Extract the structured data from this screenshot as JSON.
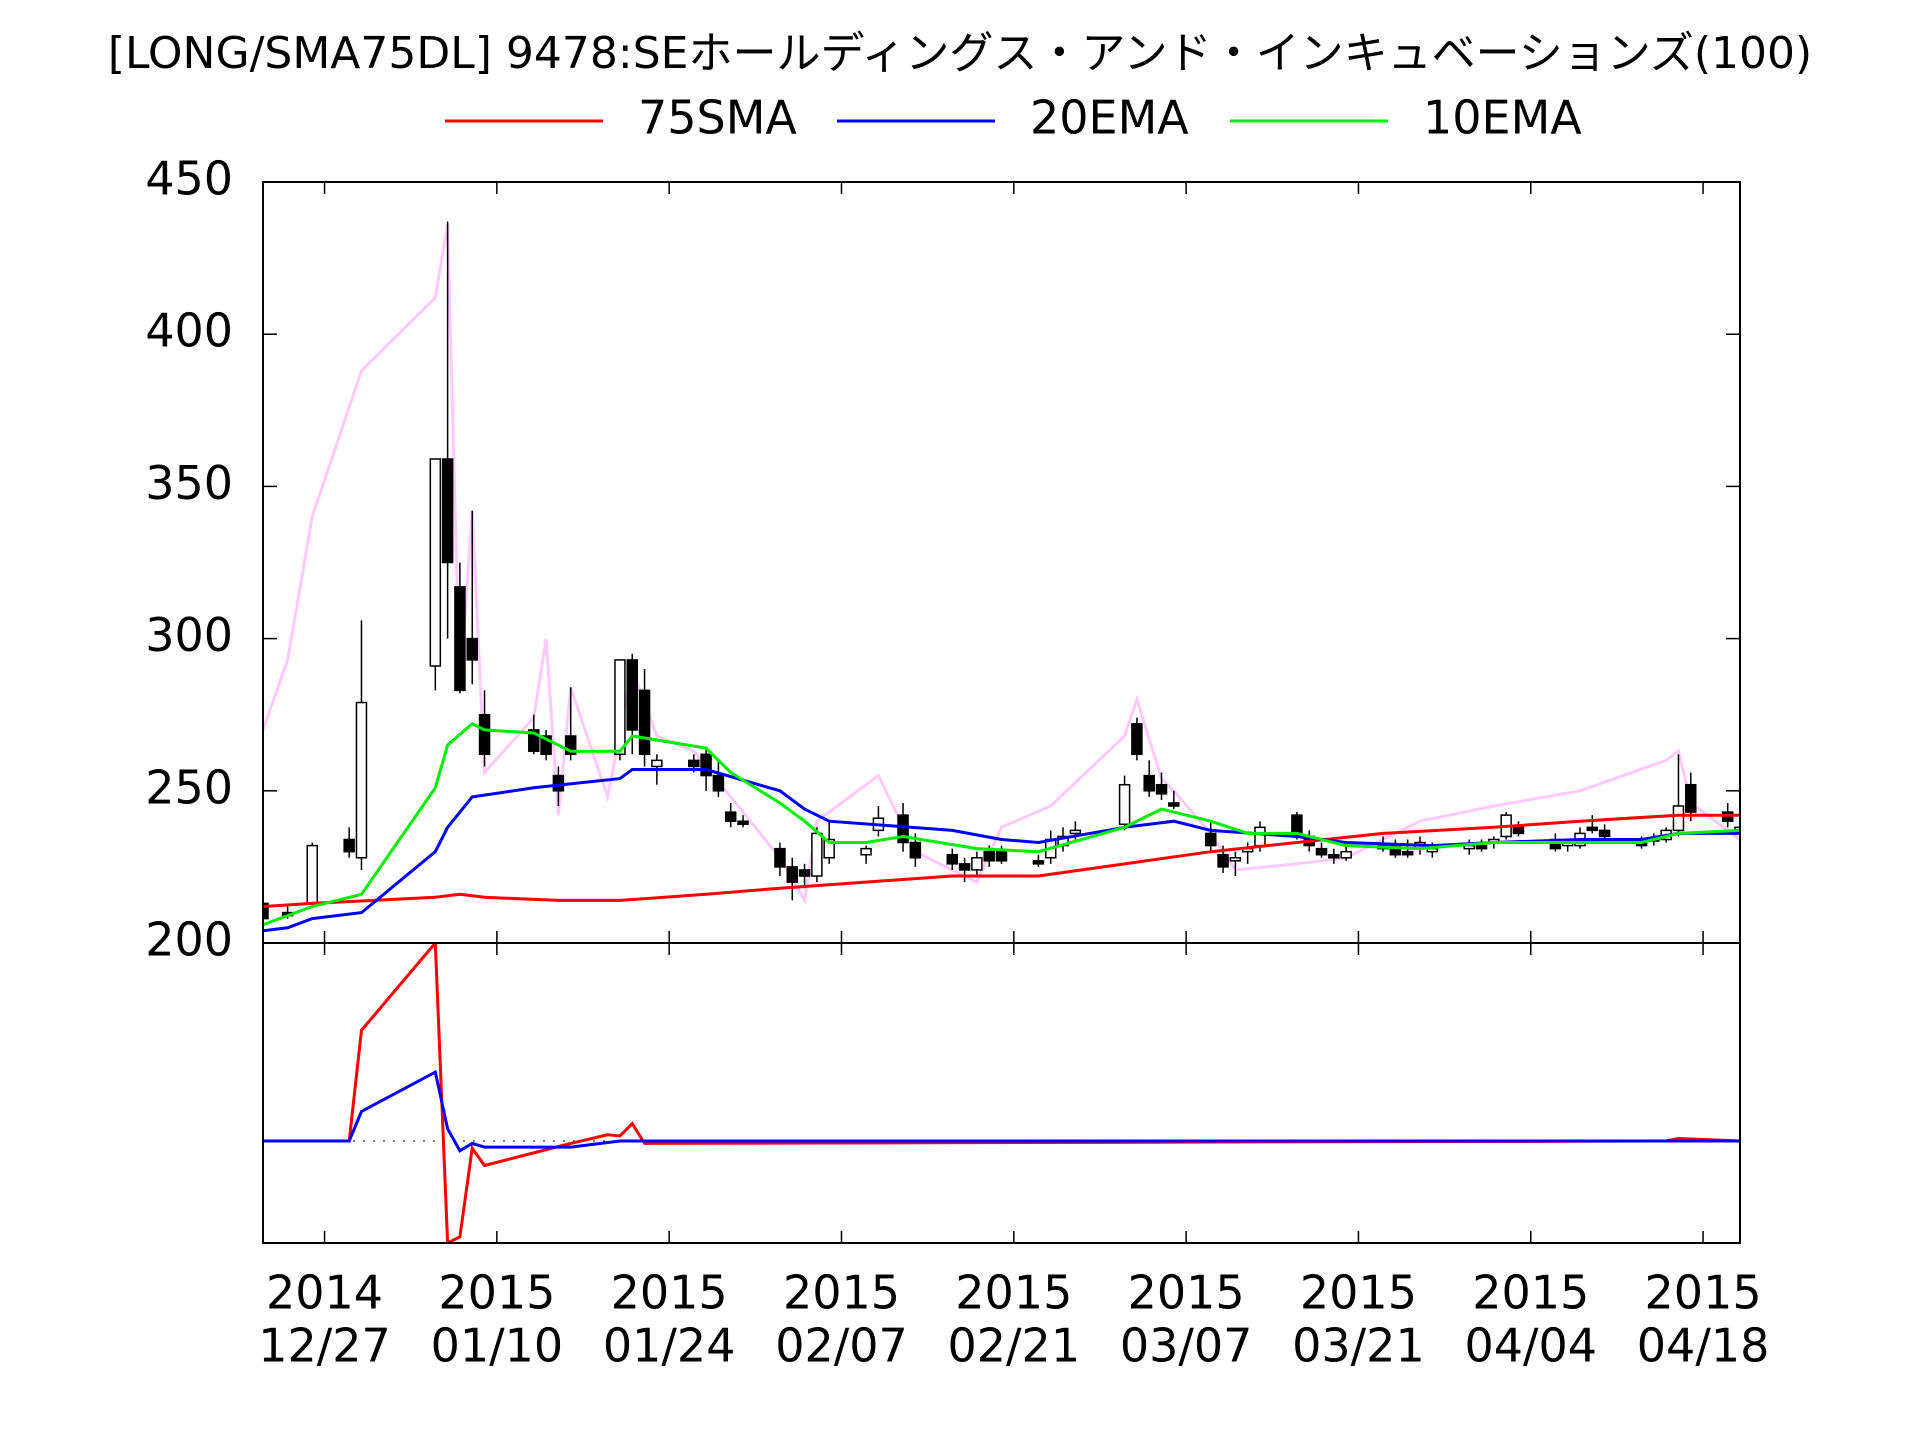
{
  "chart_data": [
    {
      "type": "candlestick",
      "title": "[LONG/SMA75DL] 9478:SEホールディングス・アンド・インキュベーションズ(100)",
      "xlim": [
        "2014-12-22",
        "2015-04-21"
      ],
      "ylim": [
        200,
        450
      ],
      "yticks": [
        200,
        250,
        300,
        350,
        400,
        450
      ],
      "x": [
        "2014-12-22",
        "2014-12-24",
        "2014-12-26",
        "2014-12-29",
        "2014-12-30",
        "2015-01-05",
        "2015-01-06",
        "2015-01-07",
        "2015-01-08",
        "2015-01-09",
        "2015-01-13",
        "2015-01-14",
        "2015-01-15",
        "2015-01-16",
        "2015-01-20",
        "2015-01-21",
        "2015-01-22",
        "2015-01-23",
        "2015-01-26",
        "2015-01-27",
        "2015-01-28",
        "2015-01-29",
        "2015-01-30",
        "2015-02-02",
        "2015-02-03",
        "2015-02-04",
        "2015-02-05",
        "2015-02-06",
        "2015-02-09",
        "2015-02-10",
        "2015-02-12",
        "2015-02-13",
        "2015-02-16",
        "2015-02-17",
        "2015-02-18",
        "2015-02-19",
        "2015-02-20",
        "2015-02-23",
        "2015-02-24",
        "2015-02-25",
        "2015-02-26",
        "2015-03-02",
        "2015-03-03",
        "2015-03-04",
        "2015-03-05",
        "2015-03-06",
        "2015-03-09",
        "2015-03-10",
        "2015-03-11",
        "2015-03-12",
        "2015-03-13",
        "2015-03-16",
        "2015-03-17",
        "2015-03-18",
        "2015-03-19",
        "2015-03-20",
        "2015-03-23",
        "2015-03-24",
        "2015-03-25",
        "2015-03-26",
        "2015-03-27",
        "2015-03-30",
        "2015-03-31",
        "2015-04-01",
        "2015-04-02",
        "2015-04-03",
        "2015-04-06",
        "2015-04-07",
        "2015-04-08",
        "2015-04-09",
        "2015-04-10",
        "2015-04-13",
        "2015-04-14",
        "2015-04-15",
        "2015-04-16",
        "2015-04-17",
        "2015-04-20",
        "2015-04-21"
      ],
      "open": [
        213,
        210,
        213,
        234,
        228,
        291,
        359,
        317,
        300,
        275,
        270,
        268,
        255,
        268,
        262,
        293,
        283,
        258,
        260,
        262,
        255,
        243,
        240,
        231,
        225,
        224,
        222,
        228,
        229,
        237,
        242,
        233,
        229,
        226,
        224,
        230,
        230,
        227,
        228,
        232,
        236,
        239,
        272,
        255,
        252,
        246,
        236,
        229,
        227,
        230,
        232,
        242,
        235,
        231,
        229,
        228,
        231,
        232,
        230,
        231,
        230,
        231,
        232,
        233,
        235,
        238,
        234,
        232,
        232,
        238,
        237,
        233,
        234,
        234,
        237,
        252,
        243,
        236
      ],
      "high": [
        215,
        212,
        233,
        238,
        306,
        359,
        437,
        325,
        342,
        283,
        275,
        270,
        258,
        284,
        293,
        295,
        290,
        262,
        262,
        264,
        260,
        246,
        242,
        233,
        228,
        226,
        238,
        240,
        232,
        245,
        246,
        236,
        231,
        228,
        230,
        232,
        232,
        229,
        237,
        238,
        240,
        255,
        274,
        260,
        256,
        250,
        240,
        232,
        230,
        233,
        240,
        243,
        237,
        233,
        231,
        232,
        235,
        234,
        234,
        235,
        233,
        234,
        234,
        235,
        243,
        240,
        236,
        234,
        238,
        242,
        239,
        235,
        236,
        238,
        262,
        256,
        246,
        239
      ],
      "low": [
        207,
        208,
        212,
        228,
        224,
        283,
        300,
        282,
        285,
        258,
        262,
        260,
        245,
        260,
        260,
        262,
        258,
        252,
        256,
        250,
        248,
        238,
        238,
        222,
        214,
        218,
        220,
        226,
        226,
        235,
        230,
        225,
        224,
        220,
        222,
        225,
        226,
        225,
        226,
        230,
        234,
        237,
        260,
        248,
        247,
        244,
        230,
        223,
        222,
        226,
        230,
        234,
        230,
        228,
        226,
        227,
        230,
        228,
        228,
        229,
        228,
        229,
        230,
        231,
        234,
        235,
        230,
        230,
        231,
        236,
        234,
        231,
        232,
        233,
        235,
        240,
        238,
        234
      ],
      "close": [
        208,
        209,
        232,
        230,
        279,
        359,
        325,
        283,
        293,
        262,
        263,
        262,
        250,
        262,
        293,
        270,
        262,
        260,
        258,
        255,
        250,
        240,
        239,
        225,
        220,
        222,
        236,
        234,
        231,
        241,
        233,
        228,
        226,
        224,
        228,
        227,
        227,
        226,
        234,
        235,
        237,
        252,
        262,
        250,
        249,
        245,
        232,
        225,
        228,
        231,
        238,
        236,
        232,
        229,
        228,
        230,
        232,
        229,
        229,
        233,
        231,
        232,
        231,
        234,
        242,
        236,
        231,
        233,
        236,
        237,
        235,
        232,
        234,
        237,
        245,
        243,
        240,
        238
      ],
      "lines": [
        {
          "name": "75SMA",
          "color": "#ff0000",
          "x": [
            "2014-12-22",
            "2014-12-26",
            "2015-01-05",
            "2015-01-07",
            "2015-01-09",
            "2015-01-15",
            "2015-01-20",
            "2015-01-27",
            "2015-02-02",
            "2015-02-16",
            "2015-02-23",
            "2015-03-02",
            "2015-03-09",
            "2015-03-16",
            "2015-03-23",
            "2015-04-01",
            "2015-04-08",
            "2015-04-16",
            "2015-04-21"
          ],
          "values": [
            212,
            213,
            215,
            216,
            215,
            214,
            214,
            216,
            218,
            222,
            222,
            226,
            230,
            233,
            236,
            238,
            240,
            242,
            242
          ]
        },
        {
          "name": "20EMA",
          "color": "#0000ff",
          "x": [
            "2014-12-22",
            "2014-12-24",
            "2014-12-26",
            "2014-12-30",
            "2015-01-05",
            "2015-01-06",
            "2015-01-08",
            "2015-01-13",
            "2015-01-20",
            "2015-01-21",
            "2015-01-27",
            "2015-02-02",
            "2015-02-04",
            "2015-02-06",
            "2015-02-16",
            "2015-02-20",
            "2015-02-23",
            "2015-03-02",
            "2015-03-06",
            "2015-03-09",
            "2015-03-16",
            "2015-03-20",
            "2015-03-27",
            "2015-04-01",
            "2015-04-08",
            "2015-04-13",
            "2015-04-16",
            "2015-04-21"
          ],
          "values": [
            204,
            205,
            208,
            210,
            230,
            238,
            248,
            251,
            254,
            257,
            257,
            250,
            244,
            240,
            237,
            234,
            233,
            238,
            240,
            237,
            235,
            233,
            232,
            233,
            234,
            234,
            236,
            236
          ]
        },
        {
          "name": "10EMA",
          "color": "#00ee00",
          "x": [
            "2014-12-22",
            "2014-12-26",
            "2014-12-30",
            "2015-01-05",
            "2015-01-06",
            "2015-01-08",
            "2015-01-09",
            "2015-01-13",
            "2015-01-16",
            "2015-01-20",
            "2015-01-21",
            "2015-01-27",
            "2015-01-29",
            "2015-02-02",
            "2015-02-04",
            "2015-02-06",
            "2015-02-09",
            "2015-02-12",
            "2015-02-18",
            "2015-02-23",
            "2015-03-02",
            "2015-03-05",
            "2015-03-09",
            "2015-03-12",
            "2015-03-16",
            "2015-03-20",
            "2015-03-26",
            "2015-04-01",
            "2015-04-08",
            "2015-04-13",
            "2015-04-16",
            "2015-04-21"
          ],
          "values": [
            206,
            212,
            216,
            251,
            265,
            272,
            270,
            269,
            263,
            263,
            268,
            264,
            256,
            246,
            240,
            233,
            233,
            235,
            231,
            230,
            238,
            244,
            240,
            236,
            236,
            232,
            231,
            233,
            233,
            233,
            236,
            237
          ]
        },
        {
          "color": "#ffc8ff",
          "x": [
            "2014-12-22",
            "2014-12-24",
            "2014-12-26",
            "2014-12-30",
            "2015-01-05",
            "2015-01-06",
            "2015-01-07",
            "2015-01-08",
            "2015-01-09",
            "2015-01-13",
            "2015-01-14",
            "2015-01-15",
            "2015-01-16",
            "2015-01-19",
            "2015-01-21",
            "2015-01-23",
            "2015-01-26",
            "2015-02-02",
            "2015-02-04",
            "2015-02-05",
            "2015-02-10",
            "2015-02-13",
            "2015-02-18",
            "2015-02-20",
            "2015-02-24",
            "2015-03-02",
            "2015-03-03",
            "2015-03-05",
            "2015-03-06",
            "2015-03-09",
            "2015-03-11",
            "2015-03-16",
            "2015-03-20",
            "2015-03-26",
            "2015-04-01",
            "2015-04-08",
            "2015-04-15",
            "2015-04-16",
            "2015-04-17",
            "2015-04-21"
          ],
          "values": [
            270,
            293,
            340,
            388,
            412,
            436,
            283,
            342,
            256,
            274,
            300,
            242,
            284,
            248,
            290,
            268,
            263,
            228,
            214,
            240,
            255,
            230,
            220,
            238,
            245,
            268,
            280,
            254,
            250,
            236,
            224,
            226,
            228,
            240,
            245,
            250,
            260,
            263,
            246,
            234
          ]
        }
      ]
    },
    {
      "type": "line",
      "xlim": [
        "2014-12-22",
        "2015-04-21"
      ],
      "ylim": [
        -83,
        161
      ],
      "xticks": [
        {
          "value": "2014-12-27",
          "label": [
            "2014",
            "12/27"
          ]
        },
        {
          "value": "2015-01-10",
          "label": [
            "2015",
            "01/10"
          ]
        },
        {
          "value": "2015-01-24",
          "label": [
            "2015",
            "01/24"
          ]
        },
        {
          "value": "2015-02-07",
          "label": [
            "2015",
            "02/07"
          ]
        },
        {
          "value": "2015-02-21",
          "label": [
            "2015",
            "02/21"
          ]
        },
        {
          "value": "2015-03-07",
          "label": [
            "2015",
            "03/07"
          ]
        },
        {
          "value": "2015-03-21",
          "label": [
            "2015",
            "03/21"
          ]
        },
        {
          "value": "2015-04-04",
          "label": [
            "2015",
            "04/04"
          ]
        },
        {
          "value": "2015-04-18",
          "label": [
            "2015",
            "04/18"
          ]
        }
      ],
      "series": [
        {
          "color": "#ff0000",
          "x": [
            "2014-12-22",
            "2014-12-29",
            "2014-12-30",
            "2015-01-05",
            "2015-01-06",
            "2015-01-07",
            "2015-01-08",
            "2015-01-09",
            "2015-01-16",
            "2015-01-19",
            "2015-01-20",
            "2015-01-21",
            "2015-01-22",
            "2015-04-15",
            "2015-04-16",
            "2015-04-21"
          ],
          "values": [
            0,
            0,
            90,
            161,
            -83,
            -78,
            -6,
            -20,
            -2,
            5,
            4,
            14,
            -2,
            0,
            2,
            0
          ]
        },
        {
          "color": "#0000ff",
          "x": [
            "2014-12-22",
            "2014-12-29",
            "2014-12-30",
            "2015-01-05",
            "2015-01-06",
            "2015-01-07",
            "2015-01-08",
            "2015-01-09",
            "2015-01-16",
            "2015-01-20",
            "2015-04-21"
          ],
          "values": [
            0,
            0,
            24,
            56,
            10,
            -8,
            -2,
            -5,
            -5,
            0,
            0
          ]
        }
      ]
    }
  ]
}
